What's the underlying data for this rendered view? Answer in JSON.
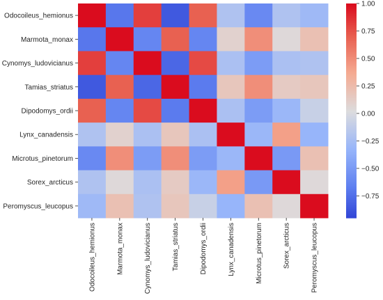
{
  "chart_data": {
    "type": "heatmap",
    "rows": [
      "Odocoileus_hemionus",
      "Marmota_monax",
      "Cynomys_ludovicianus",
      "Tamias_striatus",
      "Dipodomys_ordii",
      "Lynx_canadensis",
      "Microtus_pinetorum",
      "Sorex_arcticus",
      "Peromyscus_leucopus"
    ],
    "columns": [
      "Odocoileus_hemionus",
      "Marmota_monax",
      "Cynomys_ludovicianus",
      "Tamias_striatus",
      "Dipodomys_ordii",
      "Lynx_canadensis",
      "Microtus_pinetorum",
      "Sorex_arcticus",
      "Peromyscus_leucopus"
    ],
    "values": [
      [
        1.0,
        -0.7,
        0.82,
        -0.85,
        0.7,
        -0.2,
        -0.6,
        -0.2,
        -0.28
      ],
      [
        -0.7,
        1.0,
        -0.62,
        0.7,
        -0.62,
        0.1,
        0.5,
        0.05,
        0.22
      ],
      [
        0.82,
        -0.62,
        1.0,
        -0.78,
        0.78,
        -0.22,
        -0.48,
        -0.22,
        -0.2
      ],
      [
        -0.85,
        0.7,
        -0.78,
        1.0,
        -0.68,
        0.18,
        0.5,
        0.15,
        0.18
      ],
      [
        0.7,
        -0.62,
        0.78,
        -0.68,
        1.0,
        -0.22,
        -0.48,
        -0.3,
        -0.08
      ],
      [
        -0.2,
        0.1,
        -0.22,
        0.18,
        -0.22,
        1.0,
        -0.3,
        0.42,
        -0.32
      ],
      [
        -0.6,
        0.5,
        -0.48,
        0.5,
        -0.48,
        -0.3,
        1.0,
        -0.5,
        0.22
      ],
      [
        -0.2,
        0.05,
        -0.22,
        0.15,
        -0.3,
        0.42,
        -0.5,
        1.0,
        0.05
      ],
      [
        -0.28,
        0.22,
        -0.2,
        0.18,
        -0.08,
        -0.32,
        0.22,
        0.05,
        1.0
      ]
    ],
    "colormap": "coolwarm",
    "vmin": -0.95,
    "vmax": 1.0,
    "colorbar_ticks": [
      1.0,
      0.75,
      0.5,
      0.25,
      0.0,
      -0.25,
      -0.5,
      -0.75
    ],
    "colorbar_tick_labels": [
      "1.00",
      "0.75",
      "0.50",
      "0.25",
      "0.00",
      "−0.25",
      "−0.50",
      "−0.75"
    ],
    "title": "",
    "xlabel": "",
    "ylabel": ""
  }
}
